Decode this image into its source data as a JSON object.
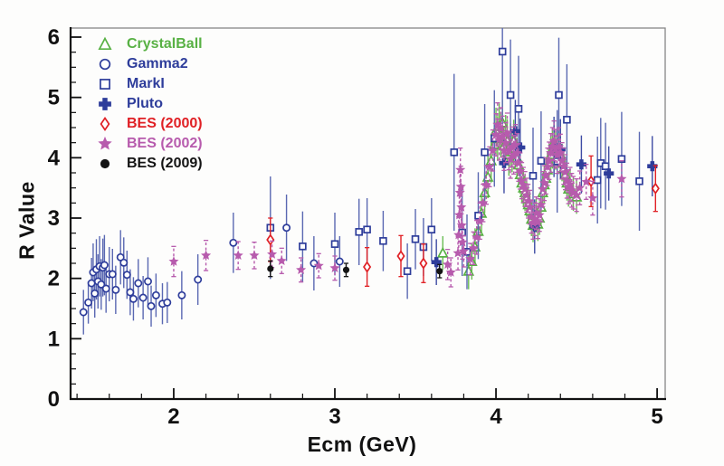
{
  "chart_data": {
    "type": "scatter",
    "title": "",
    "xlabel": "Ecm (GeV)",
    "ylabel": "R Value",
    "xlim": [
      1.36,
      5.05
    ],
    "ylim": [
      0,
      6.15
    ],
    "xticks": {
      "major": [
        2,
        3,
        4,
        5
      ],
      "minor_step": 0.2
    },
    "yticks": {
      "major": [
        0,
        1,
        2,
        3,
        4,
        5,
        6
      ],
      "minor_step": 0.25
    },
    "grid": "off",
    "legend_position": "top-left-inside",
    "colors": {
      "frame": "#888888",
      "axis": "#111111",
      "background": "#fdfdfc"
    },
    "series": [
      {
        "name": "CrystalBall",
        "marker": "triangle-open",
        "color": "#58b144",
        "bar_color": "#6bbd55",
        "errorbar_style": "solid",
        "points": [
          [
            3.67,
            2.42,
            0.28
          ],
          [
            3.83,
            2.12,
            0.3
          ],
          [
            3.85,
            2.28,
            0.3
          ],
          [
            3.87,
            2.52,
            0.31
          ],
          [
            3.89,
            2.78,
            0.32
          ],
          [
            3.91,
            3.08,
            0.33
          ],
          [
            3.93,
            3.42,
            0.34
          ],
          [
            3.95,
            3.68,
            0.35
          ],
          [
            3.97,
            3.95,
            0.36
          ],
          [
            3.99,
            4.22,
            0.37
          ],
          [
            4.0,
            4.45,
            0.38
          ],
          [
            4.01,
            4.32,
            0.37
          ],
          [
            4.02,
            4.52,
            0.38
          ],
          [
            4.03,
            4.38,
            0.37
          ],
          [
            4.04,
            4.58,
            0.38
          ],
          [
            4.05,
            4.2,
            0.36
          ],
          [
            4.06,
            4.35,
            0.36
          ],
          [
            4.07,
            4.28,
            0.36
          ],
          [
            4.08,
            4.05,
            0.35
          ],
          [
            4.09,
            4.22,
            0.35
          ],
          [
            4.1,
            4.1,
            0.34
          ],
          [
            4.11,
            4.28,
            0.35
          ],
          [
            4.12,
            4.15,
            0.34
          ],
          [
            4.13,
            4.0,
            0.33
          ],
          [
            4.14,
            3.88,
            0.33
          ],
          [
            4.15,
            3.72,
            0.32
          ],
          [
            4.16,
            3.58,
            0.31
          ],
          [
            4.17,
            3.5,
            0.31
          ],
          [
            4.18,
            3.42,
            0.3
          ],
          [
            4.19,
            3.32,
            0.3
          ],
          [
            4.2,
            3.22,
            0.29
          ],
          [
            4.21,
            3.12,
            0.29
          ],
          [
            4.22,
            2.98,
            0.28
          ],
          [
            4.23,
            2.88,
            0.28
          ],
          [
            4.24,
            2.94,
            0.28
          ],
          [
            4.25,
            3.04,
            0.28
          ],
          [
            4.26,
            2.9,
            0.28
          ],
          [
            4.27,
            3.0,
            0.28
          ],
          [
            4.28,
            3.18,
            0.29
          ],
          [
            4.29,
            3.42,
            0.3
          ],
          [
            4.3,
            3.55,
            0.3
          ],
          [
            4.31,
            3.66,
            0.31
          ],
          [
            4.32,
            3.8,
            0.31
          ],
          [
            4.33,
            3.92,
            0.32
          ],
          [
            4.34,
            4.05,
            0.32
          ],
          [
            4.35,
            4.15,
            0.33
          ],
          [
            4.36,
            4.25,
            0.33
          ],
          [
            4.37,
            4.12,
            0.32
          ],
          [
            4.38,
            4.02,
            0.32
          ],
          [
            4.39,
            4.15,
            0.32
          ],
          [
            4.4,
            4.05,
            0.31
          ],
          [
            4.41,
            3.92,
            0.31
          ],
          [
            4.42,
            3.82,
            0.3
          ],
          [
            4.43,
            3.72,
            0.3
          ],
          [
            4.44,
            3.58,
            0.29
          ],
          [
            4.45,
            3.48,
            0.29
          ],
          [
            4.46,
            3.52,
            0.29
          ],
          [
            4.48,
            3.4,
            0.28
          ],
          [
            4.5,
            3.35,
            0.28
          ]
        ]
      },
      {
        "name": "Gamma2",
        "marker": "circle-open",
        "color": "#2e3d9b",
        "bar_color": "#5a68b2",
        "errorbar_style": "solid",
        "points": [
          [
            1.44,
            1.44,
            0.37
          ],
          [
            1.47,
            1.6,
            0.35
          ],
          [
            1.49,
            1.92,
            0.42
          ],
          [
            1.5,
            2.1,
            0.48
          ],
          [
            1.51,
            1.75,
            0.4
          ],
          [
            1.52,
            2.15,
            0.5
          ],
          [
            1.53,
            1.95,
            0.45
          ],
          [
            1.54,
            2.2,
            0.5
          ],
          [
            1.55,
            1.9,
            0.42
          ],
          [
            1.56,
            2.18,
            0.48
          ],
          [
            1.57,
            2.22,
            0.5
          ],
          [
            1.58,
            1.83,
            0.4
          ],
          [
            1.6,
            2.07,
            0.45
          ],
          [
            1.62,
            2.07,
            0.42
          ],
          [
            1.64,
            1.81,
            0.4
          ],
          [
            1.67,
            2.35,
            0.45
          ],
          [
            1.69,
            2.26,
            0.42
          ],
          [
            1.71,
            2.06,
            0.4
          ],
          [
            1.73,
            1.77,
            0.38
          ],
          [
            1.75,
            1.66,
            0.36
          ],
          [
            1.78,
            1.92,
            0.4
          ],
          [
            1.81,
            1.68,
            0.36
          ],
          [
            1.84,
            1.95,
            0.4
          ],
          [
            1.86,
            1.54,
            0.34
          ],
          [
            1.89,
            1.72,
            0.36
          ],
          [
            1.93,
            1.58,
            0.34
          ],
          [
            1.96,
            1.6,
            0.34
          ],
          [
            2.05,
            1.72,
            0.4
          ],
          [
            2.15,
            1.98,
            0.42
          ],
          [
            2.37,
            2.59,
            0.5
          ],
          [
            2.7,
            2.84,
            0.55
          ],
          [
            2.87,
            2.25,
            0.45
          ],
          [
            3.03,
            2.28,
            0.42
          ]
        ]
      },
      {
        "name": "MarkI",
        "marker": "square-open",
        "color": "#2e3d9b",
        "bar_color": "#5a68b2",
        "errorbar_style": "solid",
        "points": [
          [
            2.6,
            2.84,
            0.85
          ],
          [
            2.8,
            2.53,
            0.58
          ],
          [
            3.0,
            2.57,
            0.52
          ],
          [
            3.15,
            2.77,
            0.55
          ],
          [
            3.2,
            2.81,
            0.52
          ],
          [
            3.3,
            2.62,
            0.5
          ],
          [
            3.45,
            2.12,
            0.46
          ],
          [
            3.5,
            2.65,
            0.5
          ],
          [
            3.55,
            2.52,
            0.48
          ],
          [
            3.6,
            2.81,
            0.52
          ],
          [
            3.74,
            4.09,
            1.3
          ],
          [
            3.79,
            2.76,
            0.72
          ],
          [
            3.82,
            2.44,
            0.62
          ],
          [
            3.89,
            3.04,
            0.72
          ],
          [
            3.93,
            4.09,
            0.8
          ],
          [
            3.99,
            4.32,
            0.8
          ],
          [
            4.04,
            5.76,
            1.2
          ],
          [
            4.09,
            5.04,
            0.92
          ],
          [
            4.14,
            4.81,
            0.88
          ],
          [
            4.23,
            3.7,
            0.8
          ],
          [
            4.28,
            3.95,
            0.82
          ],
          [
            4.38,
            3.94,
            0.85
          ],
          [
            4.39,
            5.04,
            0.95
          ],
          [
            4.44,
            4.63,
            0.92
          ],
          [
            4.63,
            3.63,
            0.72
          ],
          [
            4.65,
            3.91,
            0.75
          ],
          [
            4.68,
            3.86,
            0.72
          ],
          [
            4.78,
            3.98,
            0.78
          ],
          [
            4.89,
            3.61,
            0.82
          ]
        ]
      },
      {
        "name": "Pluto",
        "marker": "plus-filled",
        "color": "#2e3d9b",
        "bar_color": "#3d4ba3",
        "errorbar_style": "solid",
        "points": [
          [
            3.63,
            2.27,
            0.38
          ],
          [
            4.05,
            3.91,
            0.5
          ],
          [
            4.12,
            4.44,
            0.52
          ],
          [
            4.15,
            4.17,
            0.48
          ],
          [
            4.24,
            2.86,
            0.45
          ],
          [
            4.36,
            4.18,
            0.5
          ],
          [
            4.4,
            4.14,
            0.5
          ],
          [
            4.53,
            3.89,
            0.48
          ],
          [
            4.7,
            3.74,
            0.45
          ],
          [
            4.97,
            3.86,
            0.5
          ]
        ]
      },
      {
        "name": "BES (2000)",
        "marker": "diamond-open",
        "color": "#e02025",
        "bar_color": "#e02025",
        "errorbar_style": "solid",
        "points": [
          [
            2.6,
            2.64,
            0.36
          ],
          [
            3.2,
            2.19,
            0.32
          ],
          [
            3.41,
            2.37,
            0.34
          ],
          [
            3.55,
            2.25,
            0.32
          ],
          [
            4.59,
            3.61,
            0.42
          ],
          [
            4.99,
            3.49,
            0.38
          ]
        ]
      },
      {
        "name": "BES (2002)",
        "marker": "star-filled",
        "color": "#b75bad",
        "bar_color": "#b75bad",
        "errorbar_style": "dashed",
        "points": [
          [
            2.0,
            2.28,
            0.25
          ],
          [
            2.2,
            2.38,
            0.25
          ],
          [
            2.4,
            2.38,
            0.23
          ],
          [
            2.5,
            2.38,
            0.22
          ],
          [
            2.61,
            2.4,
            0.22
          ],
          [
            2.67,
            2.29,
            0.21
          ],
          [
            2.79,
            2.14,
            0.2
          ],
          [
            2.9,
            2.21,
            0.2
          ],
          [
            3.0,
            2.17,
            0.2
          ],
          [
            3.7,
            2.23,
            0.25
          ],
          [
            3.72,
            2.1,
            0.24
          ],
          [
            3.764,
            2.42,
            0.28
          ],
          [
            3.768,
            2.72,
            0.3
          ],
          [
            3.772,
            3.05,
            0.32
          ],
          [
            3.776,
            3.42,
            0.34
          ],
          [
            3.779,
            3.8,
            0.36
          ],
          [
            3.782,
            3.52,
            0.34
          ],
          [
            3.785,
            3.18,
            0.32
          ],
          [
            3.788,
            2.88,
            0.3
          ],
          [
            3.792,
            2.6,
            0.28
          ],
          [
            3.8,
            2.45,
            0.26
          ],
          [
            3.84,
            2.32,
            0.26
          ],
          [
            3.86,
            2.5,
            0.27
          ],
          [
            3.88,
            2.68,
            0.28
          ],
          [
            3.9,
            2.95,
            0.3
          ],
          [
            3.92,
            3.25,
            0.31
          ],
          [
            3.94,
            3.55,
            0.32
          ],
          [
            3.96,
            3.85,
            0.33
          ],
          [
            3.98,
            4.12,
            0.34
          ],
          [
            4.0,
            4.38,
            0.35
          ],
          [
            4.01,
            4.55,
            0.36
          ],
          [
            4.02,
            4.3,
            0.34
          ],
          [
            4.03,
            4.48,
            0.35
          ],
          [
            4.04,
            4.35,
            0.34
          ],
          [
            4.05,
            4.12,
            0.33
          ],
          [
            4.06,
            4.25,
            0.33
          ],
          [
            4.07,
            4.4,
            0.34
          ],
          [
            4.08,
            4.12,
            0.32
          ],
          [
            4.09,
            3.98,
            0.32
          ],
          [
            4.1,
            4.18,
            0.33
          ],
          [
            4.11,
            4.05,
            0.32
          ],
          [
            4.12,
            4.22,
            0.33
          ],
          [
            4.13,
            4.08,
            0.32
          ],
          [
            4.14,
            3.92,
            0.31
          ],
          [
            4.15,
            3.78,
            0.3
          ],
          [
            4.16,
            3.62,
            0.3
          ],
          [
            4.17,
            3.55,
            0.29
          ],
          [
            4.18,
            3.48,
            0.29
          ],
          [
            4.19,
            3.38,
            0.28
          ],
          [
            4.2,
            3.28,
            0.28
          ],
          [
            4.21,
            3.18,
            0.28
          ],
          [
            4.22,
            3.02,
            0.27
          ],
          [
            4.23,
            2.92,
            0.27
          ],
          [
            4.24,
            2.98,
            0.27
          ],
          [
            4.25,
            3.08,
            0.27
          ],
          [
            4.26,
            2.93,
            0.27
          ],
          [
            4.27,
            3.05,
            0.27
          ],
          [
            4.28,
            3.22,
            0.28
          ],
          [
            4.29,
            3.48,
            0.29
          ],
          [
            4.3,
            3.58,
            0.29
          ],
          [
            4.31,
            3.7,
            0.3
          ],
          [
            4.32,
            3.85,
            0.31
          ],
          [
            4.33,
            3.95,
            0.31
          ],
          [
            4.34,
            4.08,
            0.32
          ],
          [
            4.35,
            4.18,
            0.32
          ],
          [
            4.36,
            4.28,
            0.33
          ],
          [
            4.37,
            4.15,
            0.32
          ],
          [
            4.38,
            4.05,
            0.31
          ],
          [
            4.39,
            4.18,
            0.32
          ],
          [
            4.4,
            4.08,
            0.31
          ],
          [
            4.41,
            3.95,
            0.3
          ],
          [
            4.42,
            3.86,
            0.3
          ],
          [
            4.43,
            3.76,
            0.29
          ],
          [
            4.44,
            3.62,
            0.29
          ],
          [
            4.45,
            3.52,
            0.28
          ],
          [
            4.46,
            3.56,
            0.28
          ],
          [
            4.47,
            3.46,
            0.28
          ],
          [
            4.48,
            3.42,
            0.27
          ],
          [
            4.5,
            3.38,
            0.27
          ],
          [
            4.52,
            3.5,
            0.28
          ],
          [
            4.56,
            3.6,
            0.29
          ],
          [
            4.6,
            3.33,
            0.28
          ],
          [
            4.78,
            3.65,
            0.3
          ]
        ]
      },
      {
        "name": "BES (2009)",
        "marker": "circle-filled",
        "color": "#141414",
        "bar_color": "#141414",
        "errorbar_style": "solid",
        "points": [
          [
            2.6,
            2.16,
            0.13
          ],
          [
            3.07,
            2.14,
            0.11
          ],
          [
            3.65,
            2.12,
            0.11
          ]
        ]
      }
    ]
  }
}
